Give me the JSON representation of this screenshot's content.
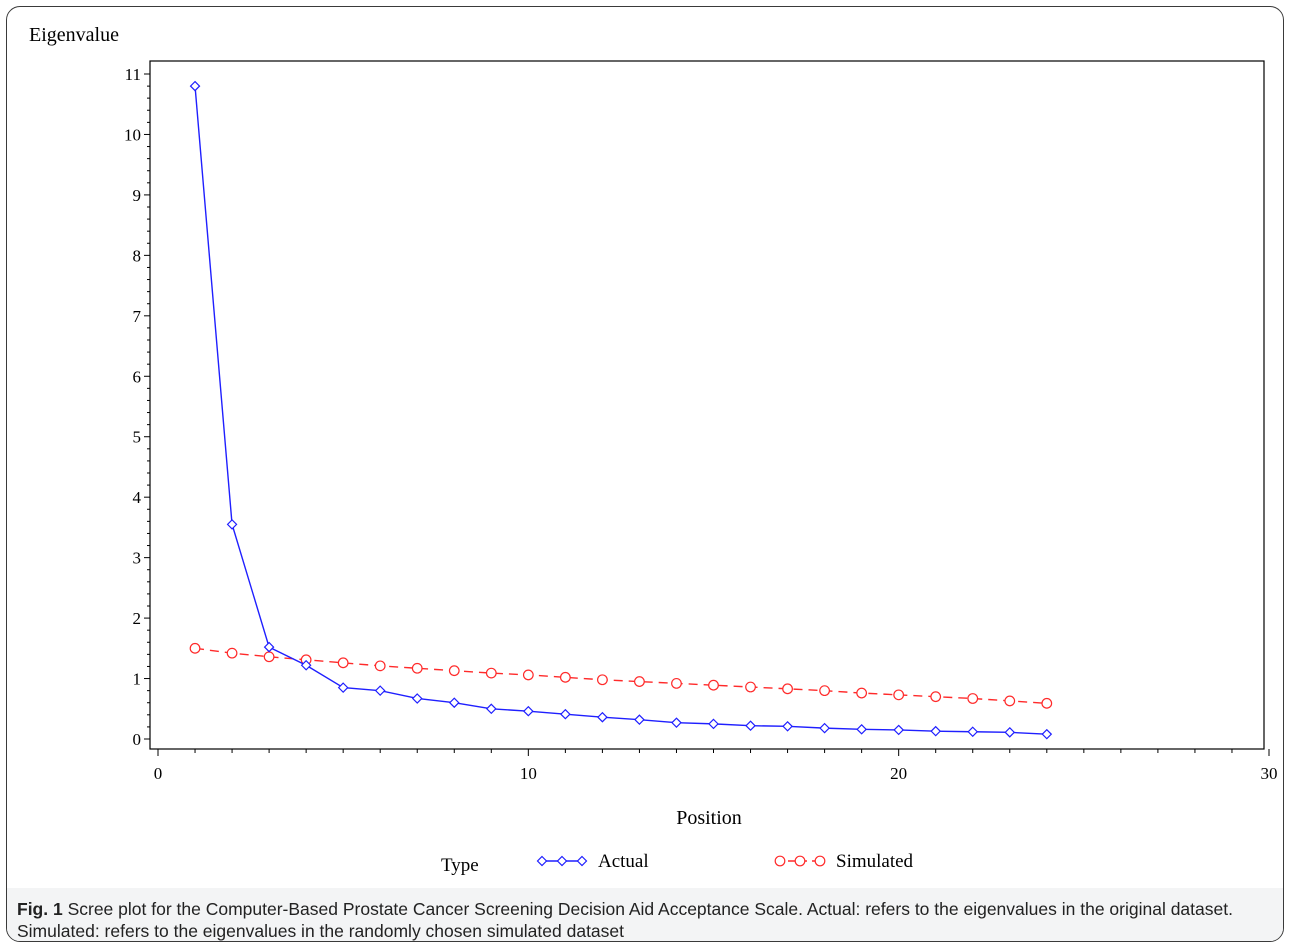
{
  "chart_data": {
    "type": "line",
    "ylabel": "Eigenvalue",
    "xlabel": "Position",
    "xlim": [
      0,
      30
    ],
    "ylim": [
      0,
      11
    ],
    "xticks": [
      0,
      10,
      20,
      30
    ],
    "yticks": [
      0,
      1,
      2,
      3,
      4,
      5,
      6,
      7,
      8,
      9,
      10,
      11
    ],
    "grid": false,
    "legend": {
      "title": "Type",
      "placement": "bottom"
    },
    "series": [
      {
        "name": "Actual",
        "color": "#1f1fff",
        "marker": "diamond",
        "line_style": "solid",
        "x": [
          1,
          2,
          3,
          4,
          5,
          6,
          7,
          8,
          9,
          10,
          11,
          12,
          13,
          14,
          15,
          16,
          17,
          18,
          19,
          20,
          21,
          22,
          23,
          24
        ],
        "values": [
          10.8,
          3.55,
          1.52,
          1.22,
          0.85,
          0.8,
          0.67,
          0.6,
          0.5,
          0.46,
          0.41,
          0.36,
          0.32,
          0.27,
          0.25,
          0.22,
          0.21,
          0.18,
          0.16,
          0.15,
          0.13,
          0.12,
          0.11,
          0.08
        ]
      },
      {
        "name": "Simulated",
        "color": "#ff2a2a",
        "marker": "circle",
        "line_style": "dashed",
        "x": [
          1,
          2,
          3,
          4,
          5,
          6,
          7,
          8,
          9,
          10,
          11,
          12,
          13,
          14,
          15,
          16,
          17,
          18,
          19,
          20,
          21,
          22,
          23,
          24
        ],
        "values": [
          1.5,
          1.42,
          1.36,
          1.31,
          1.26,
          1.21,
          1.17,
          1.13,
          1.09,
          1.06,
          1.02,
          0.98,
          0.95,
          0.92,
          0.89,
          0.86,
          0.83,
          0.8,
          0.76,
          0.73,
          0.7,
          0.67,
          0.63,
          0.59
        ]
      }
    ]
  },
  "caption": {
    "label": "Fig. 1",
    "text": "Scree plot for the Computer-Based Prostate Cancer Screening Decision Aid Acceptance Scale. Actual: refers to the eigenvalues in the original dataset. Simulated: refers to the eigenvalues in the randomly chosen simulated dataset"
  }
}
